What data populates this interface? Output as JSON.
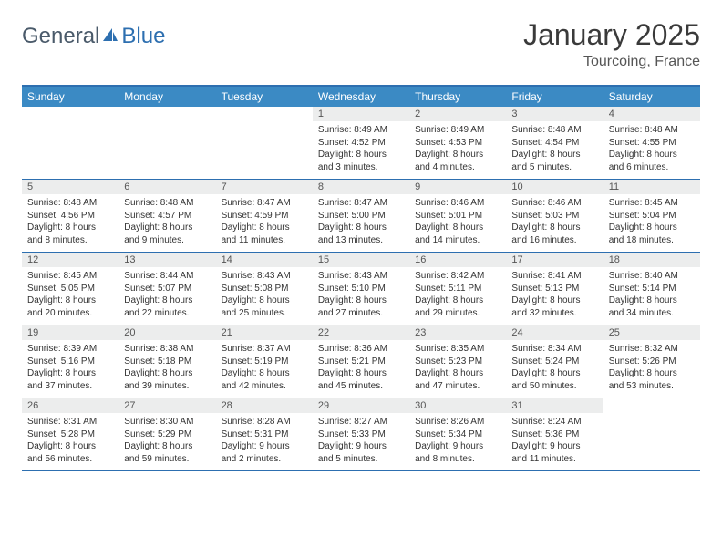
{
  "logo": {
    "part1": "General",
    "part2": "Blue"
  },
  "title": "January 2025",
  "location": "Tourcoing, France",
  "weekdays": [
    "Sunday",
    "Monday",
    "Tuesday",
    "Wednesday",
    "Thursday",
    "Friday",
    "Saturday"
  ],
  "colors": {
    "header_bar": "#3b8ac4",
    "border": "#2d6fb0",
    "daynum_bg": "#eceded"
  },
  "weeks": [
    [
      {
        "n": "",
        "sr": "",
        "ss": "",
        "dl1": "",
        "dl2": "",
        "empty": true
      },
      {
        "n": "",
        "sr": "",
        "ss": "",
        "dl1": "",
        "dl2": "",
        "empty": true
      },
      {
        "n": "",
        "sr": "",
        "ss": "",
        "dl1": "",
        "dl2": "",
        "empty": true
      },
      {
        "n": "1",
        "sr": "Sunrise: 8:49 AM",
        "ss": "Sunset: 4:52 PM",
        "dl1": "Daylight: 8 hours",
        "dl2": "and 3 minutes."
      },
      {
        "n": "2",
        "sr": "Sunrise: 8:49 AM",
        "ss": "Sunset: 4:53 PM",
        "dl1": "Daylight: 8 hours",
        "dl2": "and 4 minutes."
      },
      {
        "n": "3",
        "sr": "Sunrise: 8:48 AM",
        "ss": "Sunset: 4:54 PM",
        "dl1": "Daylight: 8 hours",
        "dl2": "and 5 minutes."
      },
      {
        "n": "4",
        "sr": "Sunrise: 8:48 AM",
        "ss": "Sunset: 4:55 PM",
        "dl1": "Daylight: 8 hours",
        "dl2": "and 6 minutes."
      }
    ],
    [
      {
        "n": "5",
        "sr": "Sunrise: 8:48 AM",
        "ss": "Sunset: 4:56 PM",
        "dl1": "Daylight: 8 hours",
        "dl2": "and 8 minutes."
      },
      {
        "n": "6",
        "sr": "Sunrise: 8:48 AM",
        "ss": "Sunset: 4:57 PM",
        "dl1": "Daylight: 8 hours",
        "dl2": "and 9 minutes."
      },
      {
        "n": "7",
        "sr": "Sunrise: 8:47 AM",
        "ss": "Sunset: 4:59 PM",
        "dl1": "Daylight: 8 hours",
        "dl2": "and 11 minutes."
      },
      {
        "n": "8",
        "sr": "Sunrise: 8:47 AM",
        "ss": "Sunset: 5:00 PM",
        "dl1": "Daylight: 8 hours",
        "dl2": "and 13 minutes."
      },
      {
        "n": "9",
        "sr": "Sunrise: 8:46 AM",
        "ss": "Sunset: 5:01 PM",
        "dl1": "Daylight: 8 hours",
        "dl2": "and 14 minutes."
      },
      {
        "n": "10",
        "sr": "Sunrise: 8:46 AM",
        "ss": "Sunset: 5:03 PM",
        "dl1": "Daylight: 8 hours",
        "dl2": "and 16 minutes."
      },
      {
        "n": "11",
        "sr": "Sunrise: 8:45 AM",
        "ss": "Sunset: 5:04 PM",
        "dl1": "Daylight: 8 hours",
        "dl2": "and 18 minutes."
      }
    ],
    [
      {
        "n": "12",
        "sr": "Sunrise: 8:45 AM",
        "ss": "Sunset: 5:05 PM",
        "dl1": "Daylight: 8 hours",
        "dl2": "and 20 minutes."
      },
      {
        "n": "13",
        "sr": "Sunrise: 8:44 AM",
        "ss": "Sunset: 5:07 PM",
        "dl1": "Daylight: 8 hours",
        "dl2": "and 22 minutes."
      },
      {
        "n": "14",
        "sr": "Sunrise: 8:43 AM",
        "ss": "Sunset: 5:08 PM",
        "dl1": "Daylight: 8 hours",
        "dl2": "and 25 minutes."
      },
      {
        "n": "15",
        "sr": "Sunrise: 8:43 AM",
        "ss": "Sunset: 5:10 PM",
        "dl1": "Daylight: 8 hours",
        "dl2": "and 27 minutes."
      },
      {
        "n": "16",
        "sr": "Sunrise: 8:42 AM",
        "ss": "Sunset: 5:11 PM",
        "dl1": "Daylight: 8 hours",
        "dl2": "and 29 minutes."
      },
      {
        "n": "17",
        "sr": "Sunrise: 8:41 AM",
        "ss": "Sunset: 5:13 PM",
        "dl1": "Daylight: 8 hours",
        "dl2": "and 32 minutes."
      },
      {
        "n": "18",
        "sr": "Sunrise: 8:40 AM",
        "ss": "Sunset: 5:14 PM",
        "dl1": "Daylight: 8 hours",
        "dl2": "and 34 minutes."
      }
    ],
    [
      {
        "n": "19",
        "sr": "Sunrise: 8:39 AM",
        "ss": "Sunset: 5:16 PM",
        "dl1": "Daylight: 8 hours",
        "dl2": "and 37 minutes."
      },
      {
        "n": "20",
        "sr": "Sunrise: 8:38 AM",
        "ss": "Sunset: 5:18 PM",
        "dl1": "Daylight: 8 hours",
        "dl2": "and 39 minutes."
      },
      {
        "n": "21",
        "sr": "Sunrise: 8:37 AM",
        "ss": "Sunset: 5:19 PM",
        "dl1": "Daylight: 8 hours",
        "dl2": "and 42 minutes."
      },
      {
        "n": "22",
        "sr": "Sunrise: 8:36 AM",
        "ss": "Sunset: 5:21 PM",
        "dl1": "Daylight: 8 hours",
        "dl2": "and 45 minutes."
      },
      {
        "n": "23",
        "sr": "Sunrise: 8:35 AM",
        "ss": "Sunset: 5:23 PM",
        "dl1": "Daylight: 8 hours",
        "dl2": "and 47 minutes."
      },
      {
        "n": "24",
        "sr": "Sunrise: 8:34 AM",
        "ss": "Sunset: 5:24 PM",
        "dl1": "Daylight: 8 hours",
        "dl2": "and 50 minutes."
      },
      {
        "n": "25",
        "sr": "Sunrise: 8:32 AM",
        "ss": "Sunset: 5:26 PM",
        "dl1": "Daylight: 8 hours",
        "dl2": "and 53 minutes."
      }
    ],
    [
      {
        "n": "26",
        "sr": "Sunrise: 8:31 AM",
        "ss": "Sunset: 5:28 PM",
        "dl1": "Daylight: 8 hours",
        "dl2": "and 56 minutes."
      },
      {
        "n": "27",
        "sr": "Sunrise: 8:30 AM",
        "ss": "Sunset: 5:29 PM",
        "dl1": "Daylight: 8 hours",
        "dl2": "and 59 minutes."
      },
      {
        "n": "28",
        "sr": "Sunrise: 8:28 AM",
        "ss": "Sunset: 5:31 PM",
        "dl1": "Daylight: 9 hours",
        "dl2": "and 2 minutes."
      },
      {
        "n": "29",
        "sr": "Sunrise: 8:27 AM",
        "ss": "Sunset: 5:33 PM",
        "dl1": "Daylight: 9 hours",
        "dl2": "and 5 minutes."
      },
      {
        "n": "30",
        "sr": "Sunrise: 8:26 AM",
        "ss": "Sunset: 5:34 PM",
        "dl1": "Daylight: 9 hours",
        "dl2": "and 8 minutes."
      },
      {
        "n": "31",
        "sr": "Sunrise: 8:24 AM",
        "ss": "Sunset: 5:36 PM",
        "dl1": "Daylight: 9 hours",
        "dl2": "and 11 minutes."
      },
      {
        "n": "",
        "sr": "",
        "ss": "",
        "dl1": "",
        "dl2": "",
        "empty": true
      }
    ]
  ]
}
